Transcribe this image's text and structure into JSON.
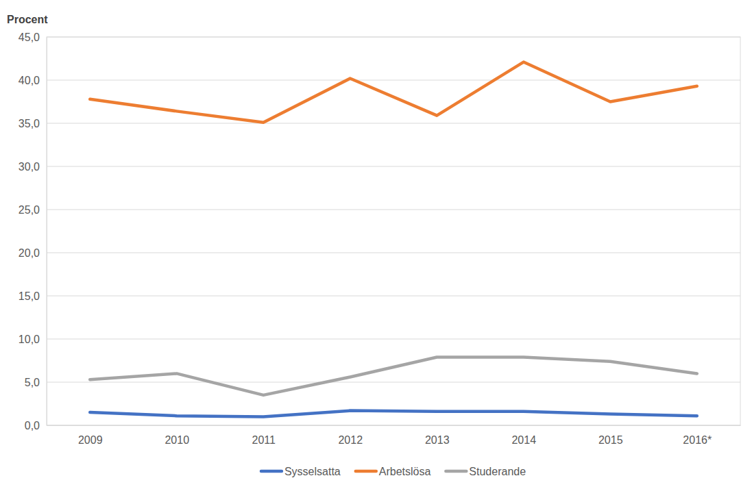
{
  "chart_data": {
    "type": "line",
    "y_label": "Procent",
    "categories": [
      "2009",
      "2010",
      "2011",
      "2012",
      "2013",
      "2014",
      "2015",
      "2016*"
    ],
    "series": [
      {
        "name": "Sysselsatta",
        "color": "#4472c4",
        "values": [
          1.5,
          1.1,
          1.0,
          1.7,
          1.6,
          1.6,
          1.3,
          1.1
        ]
      },
      {
        "name": "Arbetslösa",
        "color": "#ed7d31",
        "values": [
          37.8,
          36.4,
          35.1,
          40.2,
          35.9,
          42.1,
          37.5,
          39.3
        ]
      },
      {
        "name": "Studerande",
        "color": "#a5a5a5",
        "values": [
          5.3,
          6.0,
          3.5,
          5.6,
          7.9,
          7.9,
          7.4,
          6.0
        ]
      }
    ],
    "ylim": [
      0,
      45
    ],
    "yticks": [
      {
        "value": 0,
        "label": "0,0"
      },
      {
        "value": 5,
        "label": "5,0"
      },
      {
        "value": 10,
        "label": "10,0"
      },
      {
        "value": 15,
        "label": "15,0"
      },
      {
        "value": 20,
        "label": "20,0"
      },
      {
        "value": 25,
        "label": "25,0"
      },
      {
        "value": 30,
        "label": "30,0"
      },
      {
        "value": 35,
        "label": "35,0"
      },
      {
        "value": 40,
        "label": "40,0"
      },
      {
        "value": 45,
        "label": "45,0"
      }
    ],
    "grid": true,
    "legend": "bottom"
  }
}
